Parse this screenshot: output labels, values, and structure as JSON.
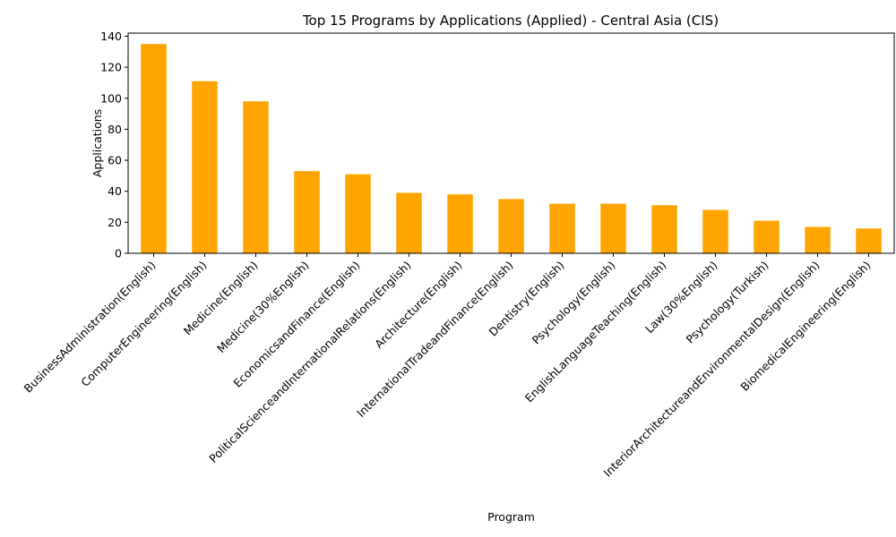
{
  "chart_data": {
    "type": "bar",
    "title": "Top 15 Programs by Applications (Applied) - Central Asia (CIS)",
    "xlabel": "Program",
    "ylabel": "Applications",
    "categories": [
      "BusinessAdministration(English)",
      "ComputerEngineering(English)",
      "Medicine(English)",
      "Medicine(30%English)",
      "EconomicsandFinance(English)",
      "PoliticalScienceandInternationalRelations(English)",
      "Architecture(English)",
      "InternationalTradeandFinance(English)",
      "Dentistry(English)",
      "Psychology(English)",
      "EnglishLanguageTeaching(English)",
      "Law(30%English)",
      "Psychology(Turkish)",
      "InteriorArchitectureandEnvironmentalDesign(English)",
      "BiomedicalEngineering(English)"
    ],
    "values": [
      135,
      111,
      98,
      53,
      51,
      39,
      38,
      35,
      32,
      32,
      31,
      28,
      21,
      17,
      16
    ],
    "ylim": [
      0,
      142
    ],
    "yticks": [
      "0",
      "20",
      "40",
      "60",
      "80",
      "100",
      "120",
      "140"
    ],
    "bar_color": "#ffa500",
    "grid": false,
    "legend": "none"
  }
}
